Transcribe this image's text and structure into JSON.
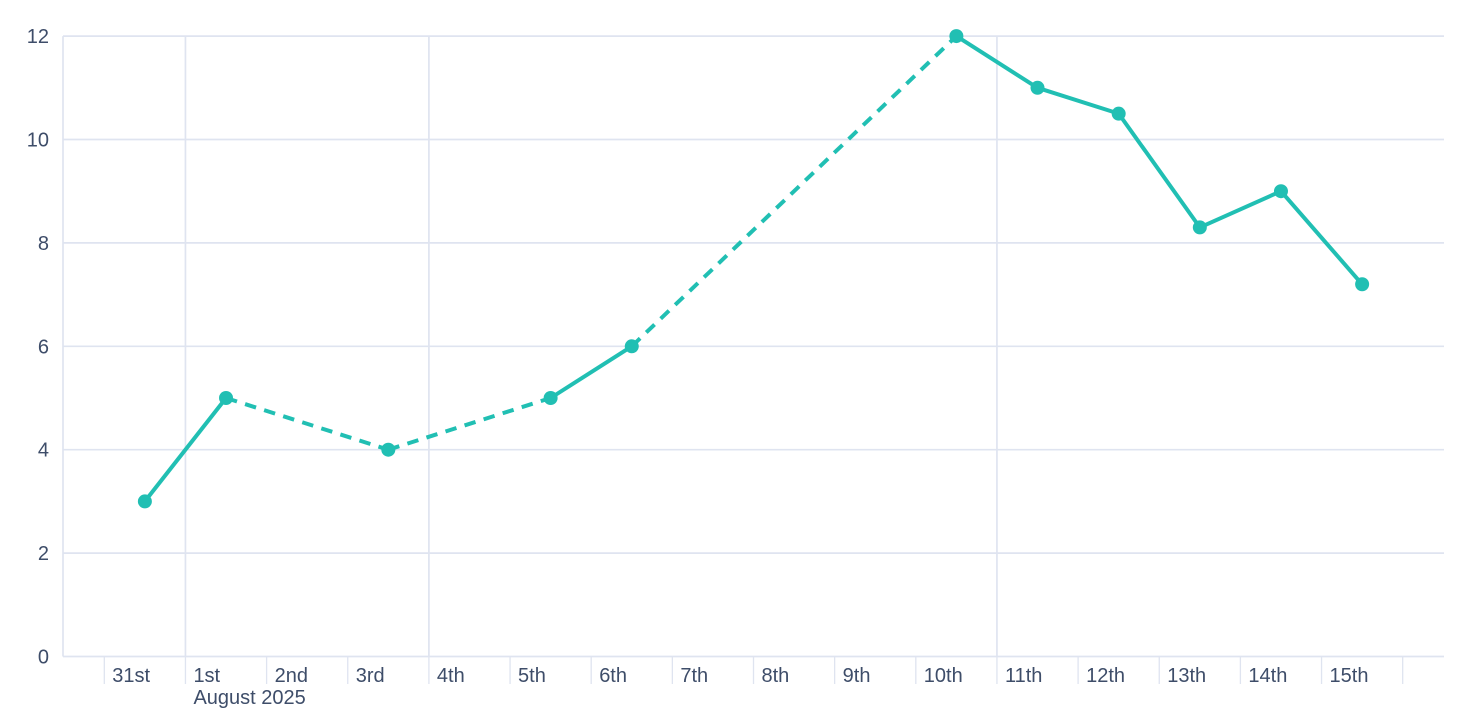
{
  "chart_data": {
    "type": "line",
    "title": "",
    "x_axis": {
      "unit": "day",
      "labels": [
        "31st",
        "1st",
        "2nd",
        "3rd",
        "4th",
        "5th",
        "6th",
        "7th",
        "8th",
        "9th",
        "10th",
        "11th",
        "12th",
        "13th",
        "14th",
        "15th"
      ],
      "secondary_label": "August 2025",
      "secondary_label_under": "1st",
      "full_gridlines_at": [
        "1st",
        "4th",
        "11th"
      ],
      "unlabeled_trailing_tick": true
    },
    "y_axis": {
      "ticks": [
        0,
        2,
        4,
        6,
        8,
        10,
        12
      ],
      "range": [
        0,
        12
      ],
      "grid": true
    },
    "series": [
      {
        "name": "daily-values",
        "color": "#21BFB3",
        "marker": "circle",
        "points": [
          {
            "day": "31st",
            "value": 3
          },
          {
            "day": "1st",
            "value": 5
          },
          {
            "day": "2nd",
            "value": null
          },
          {
            "day": "3rd",
            "value": 4
          },
          {
            "day": "4th",
            "value": null
          },
          {
            "day": "5th",
            "value": 5
          },
          {
            "day": "6th",
            "value": 6
          },
          {
            "day": "7th",
            "value": null
          },
          {
            "day": "8th",
            "value": null
          },
          {
            "day": "9th",
            "value": null
          },
          {
            "day": "10th",
            "value": 12
          },
          {
            "day": "11th",
            "value": 11
          },
          {
            "day": "12th",
            "value": 10.5
          },
          {
            "day": "13th",
            "value": 8.3
          },
          {
            "day": "14th",
            "value": 9
          },
          {
            "day": "15th",
            "value": 7.2
          }
        ],
        "segment_style_rule": "solid between consecutive days; dashed across gaps where days have no value"
      }
    ],
    "legend": null,
    "colors": {
      "line": "#21BFB3",
      "grid": "#DFE4F0",
      "tick": "#DFE4F0",
      "axis_text": "#3E4D69",
      "background": "#FFFFFF"
    }
  }
}
